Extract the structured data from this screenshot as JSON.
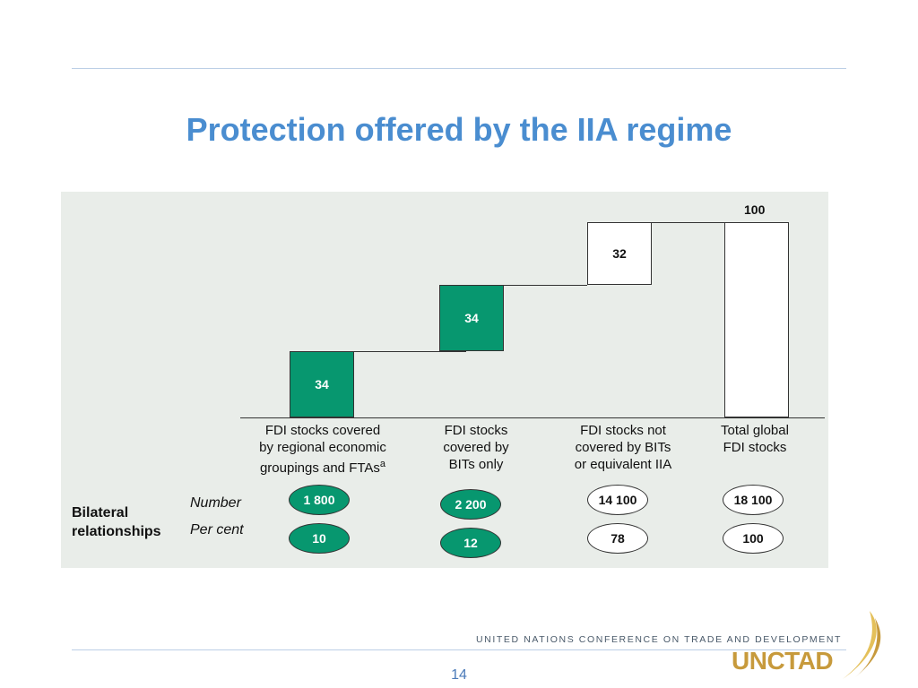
{
  "title": "Protection offered by the IIA regime",
  "chart_data": {
    "type": "bar",
    "categories": [
      [
        "FDI stocks covered",
        "by regional economic",
        "groupings and FTAs"
      ],
      [
        "FDI stocks",
        "covered by",
        "BITs only"
      ],
      [
        "FDI stocks not",
        "covered by BITs",
        "or equivalent IIA"
      ],
      [
        "Total global",
        "FDI stocks"
      ]
    ],
    "footnote_marker": "a",
    "values": [
      34,
      34,
      32,
      100
    ],
    "value_labels": [
      "34",
      "34",
      "32",
      "100"
    ],
    "bar_colors": [
      "#07976f",
      "#07976f",
      "#ffffff",
      "#ffffff"
    ],
    "ylim": [
      0,
      100
    ]
  },
  "bilateral": {
    "heading_line1": "Bilateral",
    "heading_line2": "relationships",
    "number_label": "Number",
    "percent_label": "Per cent",
    "number_values": [
      "1 800",
      "2 200",
      "14 100",
      "18 100"
    ],
    "percent_values": [
      "10",
      "12",
      "78",
      "100"
    ],
    "oval_styles": [
      "green",
      "green",
      "white",
      "white"
    ]
  },
  "footer": {
    "organization": "UNITED NATIONS CONFERENCE ON TRADE AND DEVELOPMENT",
    "logo_text": "UNCTAD",
    "page_number": "14"
  }
}
